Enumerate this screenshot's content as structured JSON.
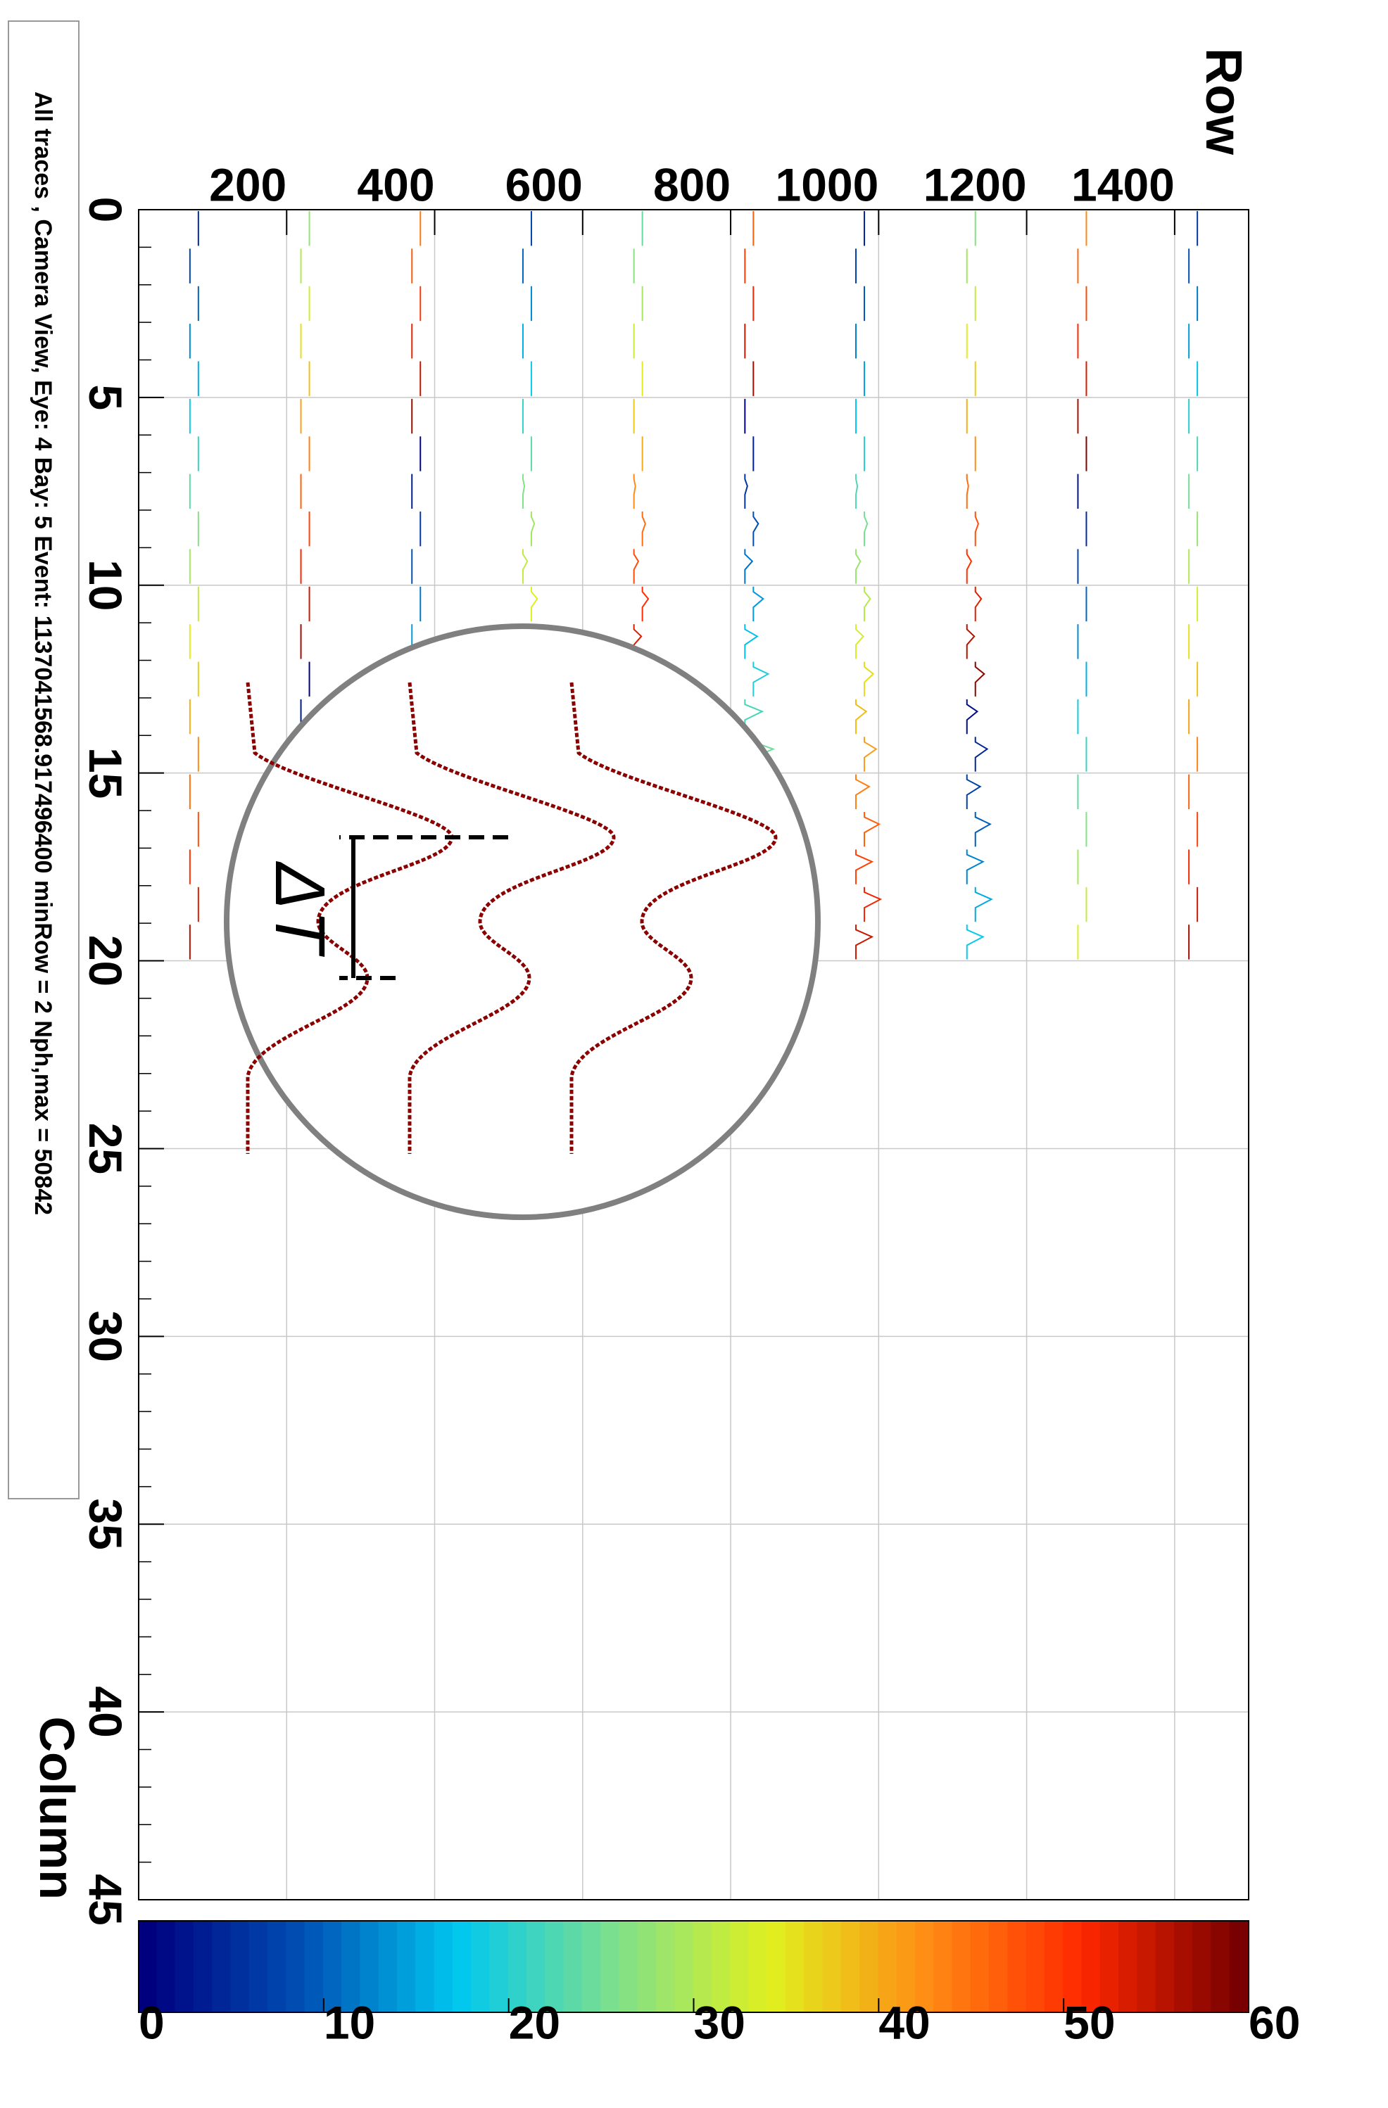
{
  "chart_data": {
    "type": "line",
    "title": "All traces , Camera View, Eye: 4 Bay: 5 Event: 1137041568.917496400 minRow = 2 Nph,max = 50842",
    "xlabel": "Column",
    "ylabel": "Row",
    "xlim": [
      0,
      45
    ],
    "ylim": [
      0,
      1500
    ],
    "x_ticks": [
      0,
      5,
      10,
      15,
      20,
      25,
      30,
      35,
      40,
      45
    ],
    "y_ticks": [
      200,
      400,
      600,
      800,
      1000,
      1200,
      1400
    ],
    "grid": true,
    "orientation": "rotated 90 degrees clockwise",
    "trace_block": {
      "columns": [
        0,
        20
      ],
      "rows": [
        0,
        1500
      ],
      "sub_columns": 10,
      "traces_per_block": 20
    },
    "colorbar": {
      "range": [
        0,
        60
      ],
      "ticks": [
        0,
        10,
        20,
        30,
        40,
        50,
        60
      ],
      "colormap": [
        "#00007f",
        "#0050b4",
        "#00c8f0",
        "#7ee08c",
        "#e0f01e",
        "#ff8c14",
        "#ff2800",
        "#780000"
      ]
    },
    "inset": {
      "annotation": "ΔT",
      "trace_count": 3,
      "trace_color": "#8b0000",
      "circle_color": "#808080"
    }
  }
}
